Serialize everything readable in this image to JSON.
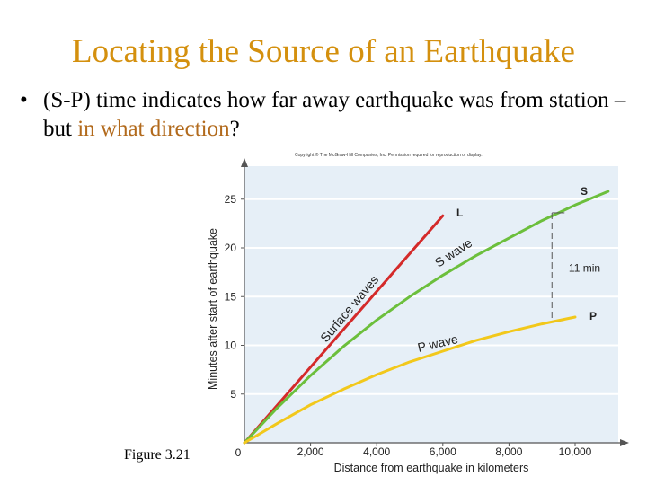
{
  "slide": {
    "title": "Locating the Source of an Earthquake",
    "bullet_symbol": "•",
    "bullet_part1": "(S-P) time indicates how far away earthquake was from station – but ",
    "bullet_accent": "in what direction",
    "bullet_end": "?",
    "figure_label": "Figure 3.21"
  },
  "chart_data": {
    "type": "line",
    "copyright": "Copyright © The McGraw-Hill Companies, Inc. Permission required for reproduction or display.",
    "xlabel": "Distance from earthquake in kilometers",
    "ylabel": "Minutes after start of earthquake",
    "xlim": [
      0,
      11000
    ],
    "ylim": [
      0,
      28
    ],
    "x_ticks": [
      0,
      2000,
      4000,
      6000,
      8000,
      10000
    ],
    "x_tick_labels": [
      "0",
      "2,000",
      "4,000",
      "6,000",
      "8,000",
      "10,000"
    ],
    "y_ticks": [
      5,
      10,
      15,
      20,
      25
    ],
    "y_tick_labels": [
      "5",
      "10",
      "15",
      "20",
      "25"
    ],
    "series": [
      {
        "name": "L",
        "label": "Surface waves",
        "color": "#d42a2a",
        "x": [
          0,
          6000
        ],
        "y": [
          0,
          23.3
        ]
      },
      {
        "name": "S",
        "label": "S wave",
        "color": "#6cbf3c",
        "x": [
          0,
          1000,
          2000,
          3000,
          4000,
          5000,
          6000,
          7000,
          8000,
          9000,
          10000,
          11000
        ],
        "y": [
          0,
          3.6,
          6.9,
          9.9,
          12.6,
          15.0,
          17.2,
          19.2,
          21.0,
          22.8,
          24.4,
          25.8
        ]
      },
      {
        "name": "P",
        "label": "P wave",
        "color": "#f2c81b",
        "x": [
          0,
          1000,
          2000,
          3000,
          4000,
          5000,
          6000,
          7000,
          8000,
          9000,
          10000
        ],
        "y": [
          0,
          2.0,
          3.9,
          5.5,
          7.0,
          8.3,
          9.4,
          10.5,
          11.4,
          12.2,
          12.9
        ]
      }
    ],
    "annotation": {
      "label": "11 min",
      "x": 9300,
      "y_from": 12.4,
      "y_to": 23.6
    }
  }
}
